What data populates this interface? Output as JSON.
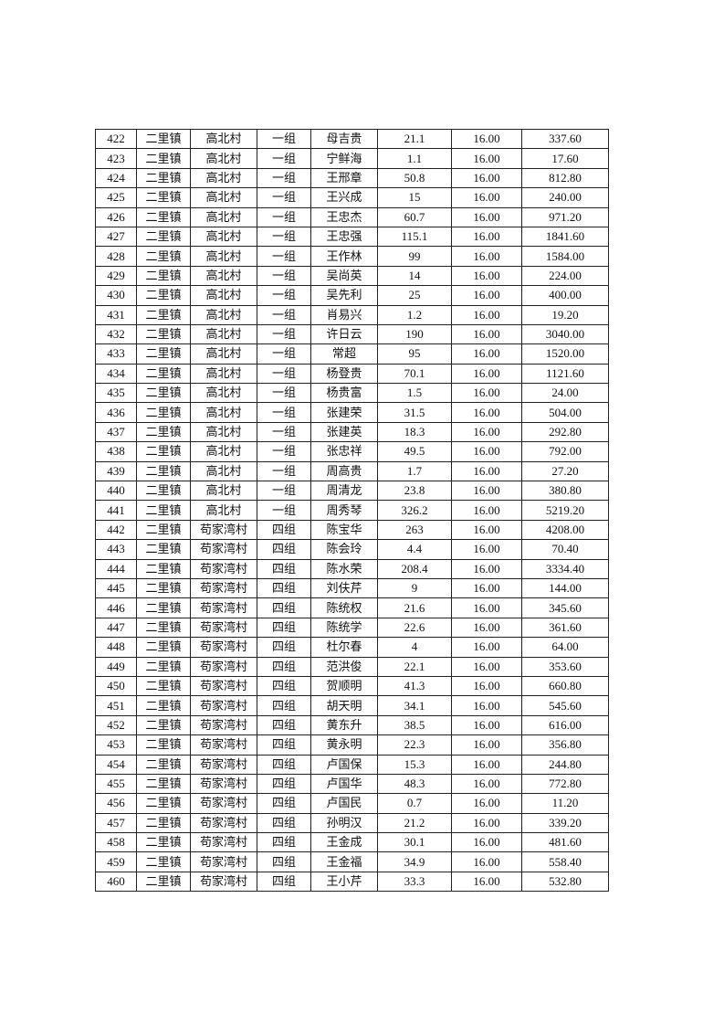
{
  "table": {
    "rows": [
      [
        "422",
        "二里镇",
        "高北村",
        "一组",
        "母吉贵",
        "21.1",
        "16.00",
        "337.60"
      ],
      [
        "423",
        "二里镇",
        "高北村",
        "一组",
        "宁鲜海",
        "1.1",
        "16.00",
        "17.60"
      ],
      [
        "424",
        "二里镇",
        "高北村",
        "一组",
        "王邢章",
        "50.8",
        "16.00",
        "812.80"
      ],
      [
        "425",
        "二里镇",
        "高北村",
        "一组",
        "王兴成",
        "15",
        "16.00",
        "240.00"
      ],
      [
        "426",
        "二里镇",
        "高北村",
        "一组",
        "王忠杰",
        "60.7",
        "16.00",
        "971.20"
      ],
      [
        "427",
        "二里镇",
        "高北村",
        "一组",
        "王忠强",
        "115.1",
        "16.00",
        "1841.60"
      ],
      [
        "428",
        "二里镇",
        "高北村",
        "一组",
        "王作林",
        "99",
        "16.00",
        "1584.00"
      ],
      [
        "429",
        "二里镇",
        "高北村",
        "一组",
        "吴尚英",
        "14",
        "16.00",
        "224.00"
      ],
      [
        "430",
        "二里镇",
        "高北村",
        "一组",
        "吴先利",
        "25",
        "16.00",
        "400.00"
      ],
      [
        "431",
        "二里镇",
        "高北村",
        "一组",
        "肖易兴",
        "1.2",
        "16.00",
        "19.20"
      ],
      [
        "432",
        "二里镇",
        "高北村",
        "一组",
        "许日云",
        "190",
        "16.00",
        "3040.00"
      ],
      [
        "433",
        "二里镇",
        "高北村",
        "一组",
        "常超",
        "95",
        "16.00",
        "1520.00"
      ],
      [
        "434",
        "二里镇",
        "高北村",
        "一组",
        "杨登贵",
        "70.1",
        "16.00",
        "1121.60"
      ],
      [
        "435",
        "二里镇",
        "高北村",
        "一组",
        "杨贵富",
        "1.5",
        "16.00",
        "24.00"
      ],
      [
        "436",
        "二里镇",
        "高北村",
        "一组",
        "张建荣",
        "31.5",
        "16.00",
        "504.00"
      ],
      [
        "437",
        "二里镇",
        "高北村",
        "一组",
        "张建英",
        "18.3",
        "16.00",
        "292.80"
      ],
      [
        "438",
        "二里镇",
        "高北村",
        "一组",
        "张忠祥",
        "49.5",
        "16.00",
        "792.00"
      ],
      [
        "439",
        "二里镇",
        "高北村",
        "一组",
        "周高贵",
        "1.7",
        "16.00",
        "27.20"
      ],
      [
        "440",
        "二里镇",
        "高北村",
        "一组",
        "周清龙",
        "23.8",
        "16.00",
        "380.80"
      ],
      [
        "441",
        "二里镇",
        "高北村",
        "一组",
        "周秀琴",
        "326.2",
        "16.00",
        "5219.20"
      ],
      [
        "442",
        "二里镇",
        "苟家湾村",
        "四组",
        "陈宝华",
        "263",
        "16.00",
        "4208.00"
      ],
      [
        "443",
        "二里镇",
        "苟家湾村",
        "四组",
        "陈会玲",
        "4.4",
        "16.00",
        "70.40"
      ],
      [
        "444",
        "二里镇",
        "苟家湾村",
        "四组",
        "陈水荣",
        "208.4",
        "16.00",
        "3334.40"
      ],
      [
        "445",
        "二里镇",
        "苟家湾村",
        "四组",
        "刘伕芹",
        "9",
        "16.00",
        "144.00"
      ],
      [
        "446",
        "二里镇",
        "苟家湾村",
        "四组",
        "陈统权",
        "21.6",
        "16.00",
        "345.60"
      ],
      [
        "447",
        "二里镇",
        "苟家湾村",
        "四组",
        "陈统学",
        "22.6",
        "16.00",
        "361.60"
      ],
      [
        "448",
        "二里镇",
        "苟家湾村",
        "四组",
        "杜尔春",
        "4",
        "16.00",
        "64.00"
      ],
      [
        "449",
        "二里镇",
        "苟家湾村",
        "四组",
        "范洪俊",
        "22.1",
        "16.00",
        "353.60"
      ],
      [
        "450",
        "二里镇",
        "苟家湾村",
        "四组",
        "贺顺明",
        "41.3",
        "16.00",
        "660.80"
      ],
      [
        "451",
        "二里镇",
        "苟家湾村",
        "四组",
        "胡天明",
        "34.1",
        "16.00",
        "545.60"
      ],
      [
        "452",
        "二里镇",
        "苟家湾村",
        "四组",
        "黄东升",
        "38.5",
        "16.00",
        "616.00"
      ],
      [
        "453",
        "二里镇",
        "苟家湾村",
        "四组",
        "黄永明",
        "22.3",
        "16.00",
        "356.80"
      ],
      [
        "454",
        "二里镇",
        "苟家湾村",
        "四组",
        "卢国保",
        "15.3",
        "16.00",
        "244.80"
      ],
      [
        "455",
        "二里镇",
        "苟家湾村",
        "四组",
        "卢国华",
        "48.3",
        "16.00",
        "772.80"
      ],
      [
        "456",
        "二里镇",
        "苟家湾村",
        "四组",
        "卢国民",
        "0.7",
        "16.00",
        "11.20"
      ],
      [
        "457",
        "二里镇",
        "苟家湾村",
        "四组",
        "孙明汉",
        "21.2",
        "16.00",
        "339.20"
      ],
      [
        "458",
        "二里镇",
        "苟家湾村",
        "四组",
        "王金成",
        "30.1",
        "16.00",
        "481.60"
      ],
      [
        "459",
        "二里镇",
        "苟家湾村",
        "四组",
        "王金福",
        "34.9",
        "16.00",
        "558.40"
      ],
      [
        "460",
        "二里镇",
        "苟家湾村",
        "四组",
        "王小芹",
        "33.3",
        "16.00",
        "532.80"
      ]
    ]
  }
}
